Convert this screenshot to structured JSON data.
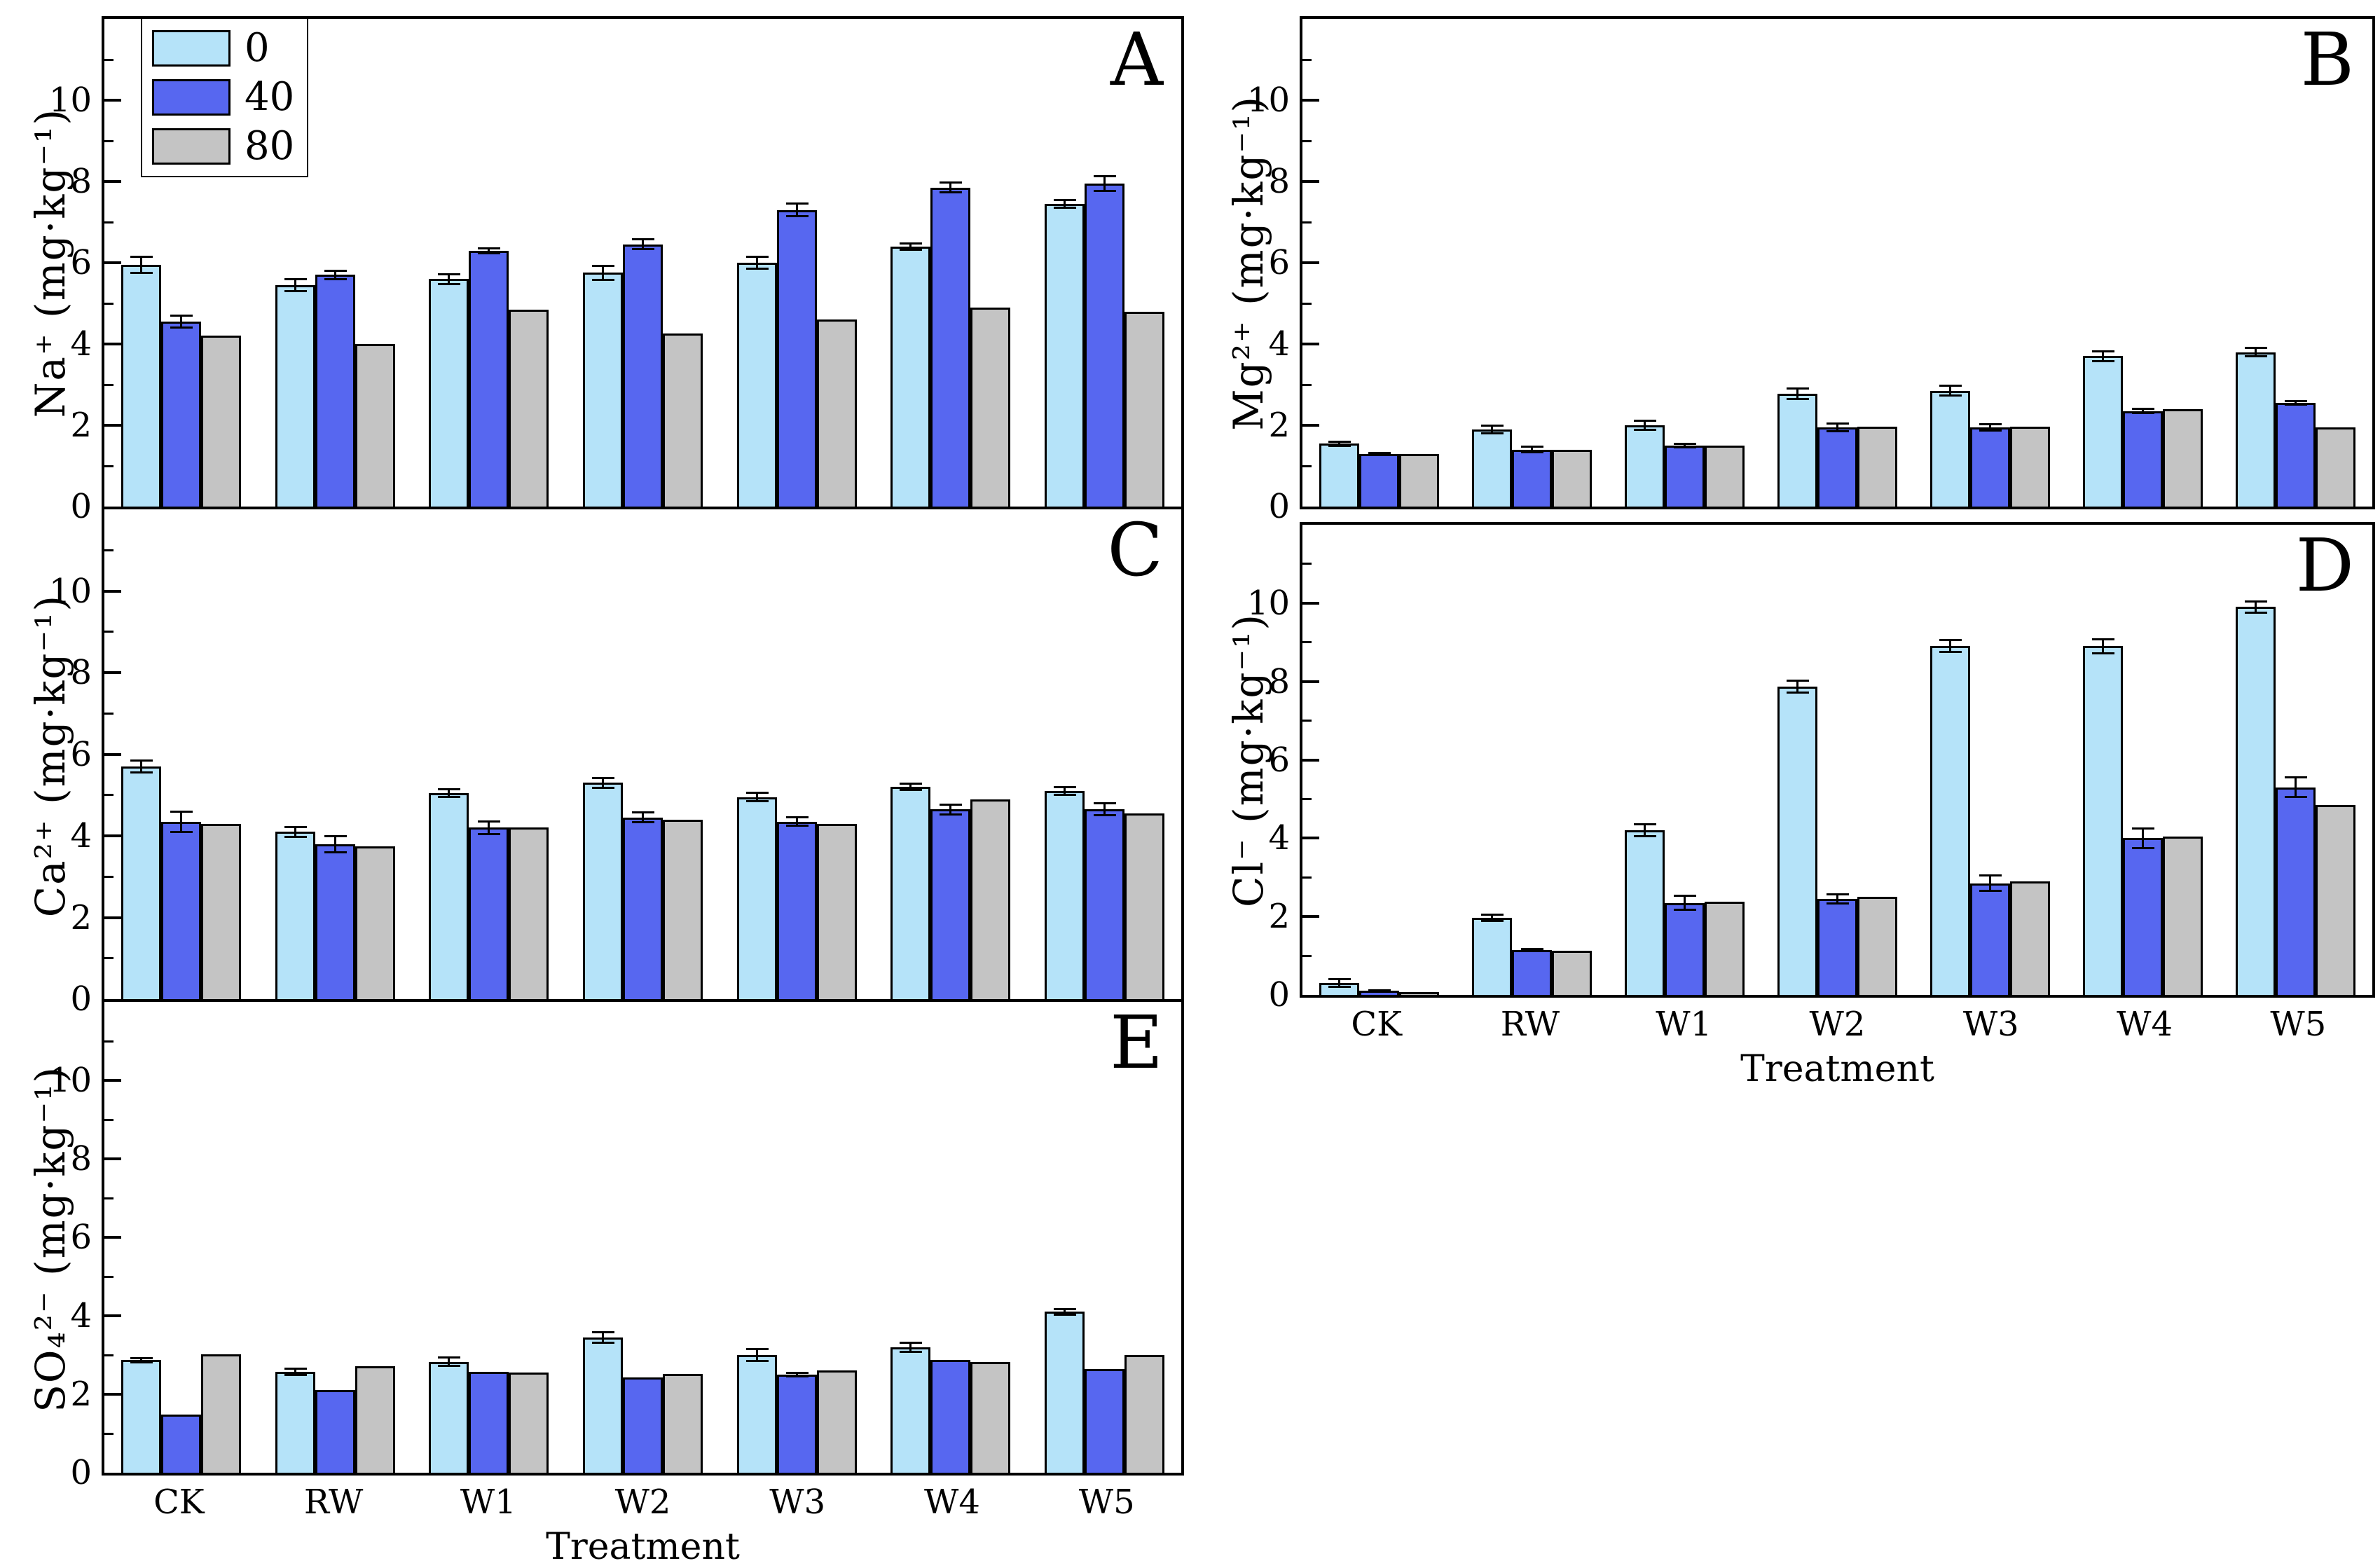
{
  "figure": {
    "background": "#ffffff",
    "axis_color": "#000000",
    "xlabel": "Treatment",
    "categories": [
      "CK",
      "RW",
      "W1",
      "W2",
      "W3",
      "W4",
      "W5"
    ]
  },
  "series_meta": [
    {
      "name": "0",
      "color": "#b5e3f9"
    },
    {
      "name": "40",
      "color": "#5767f0"
    },
    {
      "name": "80",
      "color": "#c4c4c4"
    }
  ],
  "chart_data": [
    {
      "letter": "A",
      "type": "bar",
      "ylabel": "Na⁺ (mg·kg⁻¹)",
      "ylim": [
        0,
        12
      ],
      "yticks": [
        0,
        2,
        4,
        6,
        8,
        10
      ],
      "grid": false,
      "legend_position": "upper-left",
      "categories": [
        "CK",
        "RW",
        "W1",
        "W2",
        "W3",
        "W4",
        "W5"
      ],
      "series": [
        {
          "name": "0",
          "values": [
            5.95,
            5.45,
            5.6,
            5.75,
            6.0,
            6.4,
            7.45
          ],
          "errors": [
            0.2,
            0.15,
            0.12,
            0.18,
            0.15,
            0.08,
            0.1
          ]
        },
        {
          "name": "40",
          "values": [
            4.55,
            5.7,
            6.3,
            6.45,
            7.3,
            7.85,
            7.95
          ],
          "errors": [
            0.15,
            0.1,
            0.06,
            0.12,
            0.15,
            0.12,
            0.18
          ]
        },
        {
          "name": "80",
          "values": [
            4.2,
            4.0,
            4.85,
            4.25,
            4.6,
            4.9,
            4.8
          ],
          "errors": [
            0,
            0,
            0,
            0,
            0,
            0,
            0
          ]
        }
      ],
      "show_x_tick_labels": false,
      "show_xlabel": false
    },
    {
      "letter": "B",
      "type": "bar",
      "ylabel": "Mg²⁺ (mg·kg⁻¹)",
      "ylim": [
        0,
        12
      ],
      "yticks": [
        0,
        2,
        4,
        6,
        8,
        10
      ],
      "grid": false,
      "categories": [
        "CK",
        "RW",
        "W1",
        "W2",
        "W3",
        "W4",
        "W5"
      ],
      "series": [
        {
          "name": "0",
          "values": [
            1.55,
            1.9,
            2.0,
            2.78,
            2.85,
            3.7,
            3.8
          ],
          "errors": [
            0.05,
            0.1,
            0.12,
            0.13,
            0.12,
            0.12,
            0.1
          ]
        },
        {
          "name": "40",
          "values": [
            1.3,
            1.4,
            1.5,
            1.95,
            1.95,
            2.35,
            2.55
          ],
          "errors": [
            0.02,
            0.07,
            0.05,
            0.1,
            0.08,
            0.05,
            0.04
          ]
        },
        {
          "name": "80",
          "values": [
            1.3,
            1.4,
            1.5,
            1.97,
            1.97,
            2.4,
            1.95
          ],
          "errors": [
            0,
            0,
            0,
            0,
            0,
            0,
            0
          ]
        }
      ],
      "show_x_tick_labels": false,
      "show_xlabel": false
    },
    {
      "letter": "C",
      "type": "bar",
      "ylabel": "Ca²⁺ (mg·kg⁻¹)",
      "ylim": [
        0,
        12
      ],
      "yticks": [
        0,
        2,
        4,
        6,
        8,
        10
      ],
      "grid": false,
      "categories": [
        "CK",
        "RW",
        "W1",
        "W2",
        "W3",
        "W4",
        "W5"
      ],
      "series": [
        {
          "name": "0",
          "values": [
            5.7,
            4.1,
            5.05,
            5.3,
            4.95,
            5.2,
            5.1
          ],
          "errors": [
            0.15,
            0.12,
            0.1,
            0.12,
            0.1,
            0.08,
            0.1
          ]
        },
        {
          "name": "40",
          "values": [
            4.35,
            3.8,
            4.2,
            4.45,
            4.35,
            4.65,
            4.65
          ],
          "errors": [
            0.25,
            0.2,
            0.15,
            0.12,
            0.1,
            0.12,
            0.15
          ]
        },
        {
          "name": "80",
          "values": [
            4.3,
            3.75,
            4.2,
            4.4,
            4.3,
            4.9,
            4.55
          ],
          "errors": [
            0,
            0,
            0,
            0,
            0,
            0,
            0
          ]
        }
      ],
      "show_x_tick_labels": false,
      "show_xlabel": false
    },
    {
      "letter": "D",
      "type": "bar",
      "ylabel": "Cl⁻ (mg·kg⁻¹)",
      "ylim": [
        0,
        12
      ],
      "yticks": [
        0,
        2,
        4,
        6,
        8,
        10
      ],
      "grid": false,
      "categories": [
        "CK",
        "RW",
        "W1",
        "W2",
        "W3",
        "W4",
        "W5"
      ],
      "series": [
        {
          "name": "0",
          "values": [
            0.3,
            1.97,
            4.2,
            7.87,
            8.9,
            8.9,
            9.9
          ],
          "errors": [
            0.1,
            0.08,
            0.15,
            0.15,
            0.15,
            0.18,
            0.15
          ]
        },
        {
          "name": "40",
          "values": [
            0.1,
            1.15,
            2.35,
            2.45,
            2.85,
            4.0,
            5.3
          ],
          "errors": [
            0.02,
            0.02,
            0.18,
            0.12,
            0.2,
            0.25,
            0.25
          ]
        },
        {
          "name": "80",
          "values": [
            0.07,
            1.12,
            2.37,
            2.5,
            2.9,
            4.05,
            4.85
          ],
          "errors": [
            0,
            0,
            0,
            0,
            0,
            0,
            0
          ]
        }
      ],
      "show_x_tick_labels": true,
      "show_xlabel": true
    },
    {
      "letter": "E",
      "type": "bar",
      "ylabel": "SO₄²⁻ (mg·kg⁻¹)",
      "ylim": [
        0,
        12
      ],
      "yticks": [
        0,
        2,
        4,
        6,
        8,
        10
      ],
      "grid": false,
      "categories": [
        "CK",
        "RW",
        "W1",
        "W2",
        "W3",
        "W4",
        "W5"
      ],
      "series": [
        {
          "name": "0",
          "values": [
            2.87,
            2.57,
            2.83,
            3.45,
            3.0,
            3.2,
            4.1
          ],
          "errors": [
            0.05,
            0.08,
            0.1,
            0.13,
            0.15,
            0.12,
            0.07
          ]
        },
        {
          "name": "40",
          "values": [
            1.48,
            2.1,
            2.57,
            2.42,
            2.5,
            2.88,
            2.65
          ],
          "errors": [
            0,
            0,
            0,
            0,
            0.04,
            0,
            0
          ]
        },
        {
          "name": "80",
          "values": [
            3.02,
            2.72,
            2.55,
            2.52,
            2.6,
            2.82,
            3.0
          ],
          "errors": [
            0,
            0,
            0,
            0,
            0,
            0,
            0
          ]
        }
      ],
      "show_x_tick_labels": true,
      "show_xlabel": true
    }
  ]
}
